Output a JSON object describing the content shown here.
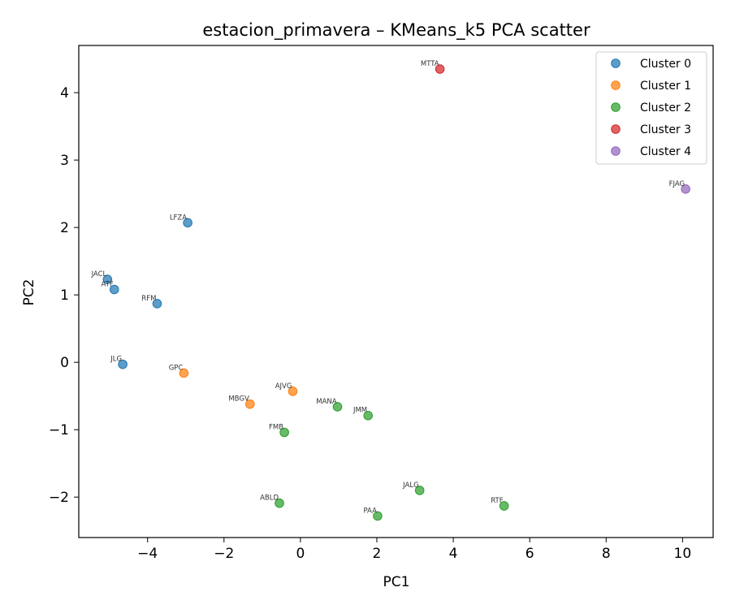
{
  "chart_data": {
    "type": "scatter",
    "title": "estacion_primavera – KMeans_k5 PCA scatter",
    "xlabel": "PC1",
    "ylabel": "PC2",
    "xlim": [
      -5.8,
      10.8
    ],
    "ylim": [
      -2.6,
      4.7
    ],
    "xticks": [
      -4,
      -2,
      0,
      2,
      4,
      6,
      8,
      10
    ],
    "yticks": [
      -2,
      -1,
      0,
      1,
      2,
      3,
      4
    ],
    "grid": false,
    "legend_position": "top-right",
    "series": [
      {
        "name": "Cluster 0",
        "color": "#1f77b4",
        "points": [
          {
            "label": "LFZA",
            "x": -2.95,
            "y": 2.07
          },
          {
            "label": "JACL",
            "x": -5.05,
            "y": 1.23
          },
          {
            "label": "ATF",
            "x": -4.87,
            "y": 1.08
          },
          {
            "label": "RFM",
            "x": -3.75,
            "y": 0.87
          },
          {
            "label": "JLG",
            "x": -4.65,
            "y": -0.03
          }
        ]
      },
      {
        "name": "Cluster 1",
        "color": "#ff7f0e",
        "points": [
          {
            "label": "GPC",
            "x": -3.05,
            "y": -0.16
          },
          {
            "label": "AJVG",
            "x": -0.2,
            "y": -0.43
          },
          {
            "label": "MBGV",
            "x": -1.32,
            "y": -0.62
          }
        ]
      },
      {
        "name": "Cluster 2",
        "color": "#2ca02c",
        "points": [
          {
            "label": "MANA",
            "x": 0.97,
            "y": -0.66
          },
          {
            "label": "JMM",
            "x": 1.77,
            "y": -0.79
          },
          {
            "label": "FMB",
            "x": -0.42,
            "y": -1.04
          },
          {
            "label": "JALG",
            "x": 3.12,
            "y": -1.9
          },
          {
            "label": "RTF",
            "x": 5.33,
            "y": -2.13
          },
          {
            "label": "ABLD",
            "x": -0.55,
            "y": -2.09
          },
          {
            "label": "PAA",
            "x": 2.02,
            "y": -2.28
          }
        ]
      },
      {
        "name": "Cluster 3",
        "color": "#d62728",
        "points": [
          {
            "label": "MTTA",
            "x": 3.65,
            "y": 4.35
          }
        ]
      },
      {
        "name": "Cluster 4",
        "color": "#9467bd",
        "points": [
          {
            "label": "FJAG",
            "x": 10.08,
            "y": 2.57
          }
        ]
      }
    ]
  }
}
